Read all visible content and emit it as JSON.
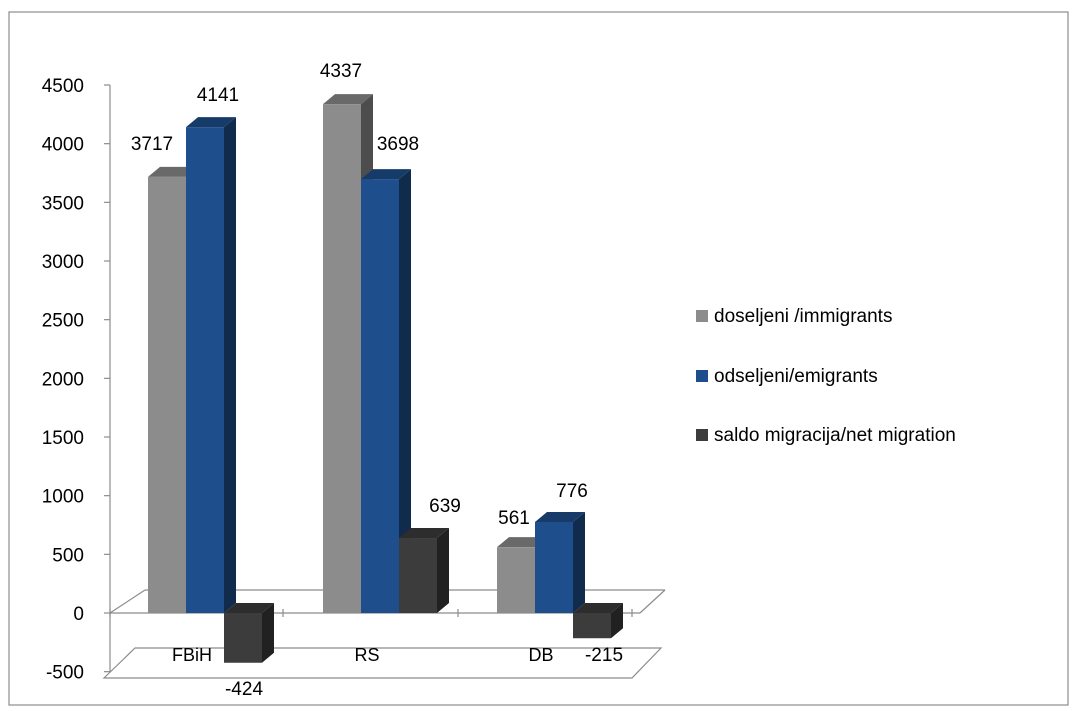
{
  "chart_data": {
    "type": "bar",
    "style": "3d-clustered-column",
    "categories": [
      "FBiH",
      "RS",
      "DB"
    ],
    "series": [
      {
        "name": "doseljeni /immigrants",
        "values": [
          3717,
          4337,
          561
        ],
        "color": "#8c8c8c"
      },
      {
        "name": "odseljeni/emigrants",
        "values": [
          4141,
          3698,
          776
        ],
        "color": "#1f4e8c"
      },
      {
        "name": "saldo migracija/net migration",
        "values": [
          -424,
          639,
          -215
        ],
        "color": "#3c3c3c"
      }
    ],
    "data_labels": [
      [
        "3717",
        "4141",
        "-424"
      ],
      [
        "4337",
        "3698",
        "639"
      ],
      [
        "561",
        "776",
        "-215"
      ]
    ],
    "y_ticks": [
      "-500",
      "0",
      "500",
      "1000",
      "1500",
      "2000",
      "2500",
      "3000",
      "3500",
      "4000",
      "4500"
    ],
    "ylim": [
      -500,
      4500
    ],
    "grid": false,
    "legend_position": "right"
  }
}
